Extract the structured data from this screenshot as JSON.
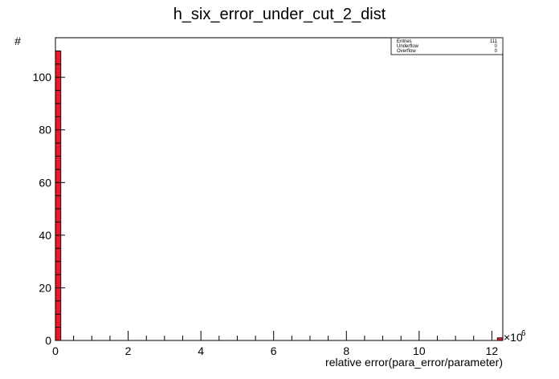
{
  "chart_data": {
    "type": "bar",
    "title": "h_six_error_under_cut_2_dist",
    "xlabel": "relative error(para_error/parameter)",
    "ylabel": "#",
    "x_multiplier_base": "×10",
    "x_multiplier_exp": "6",
    "xlim": [
      0,
      12.3
    ],
    "ylim": [
      0,
      115
    ],
    "x_ticks": [
      0,
      2,
      4,
      6,
      8,
      10,
      12
    ],
    "x_tick_labels": [
      "0",
      "2",
      "4",
      "6",
      "8",
      "10",
      "12"
    ],
    "y_ticks": [
      0,
      20,
      40,
      60,
      80,
      100
    ],
    "y_tick_labels": [
      "0",
      "20",
      "40",
      "60",
      "80",
      "100"
    ],
    "bars": [
      {
        "x0": 0.0,
        "x1": 0.15,
        "value": 110
      },
      {
        "x0": 12.15,
        "x1": 12.3,
        "value": 1
      }
    ],
    "bar_color": "#e8192c",
    "grid": false,
    "stats": {
      "rows": [
        {
          "label": "Entries",
          "value": "111"
        },
        {
          "label": "Underflow",
          "value": "0"
        },
        {
          "label": "Overflow",
          "value": "0"
        }
      ],
      "placement": "top-right"
    }
  }
}
